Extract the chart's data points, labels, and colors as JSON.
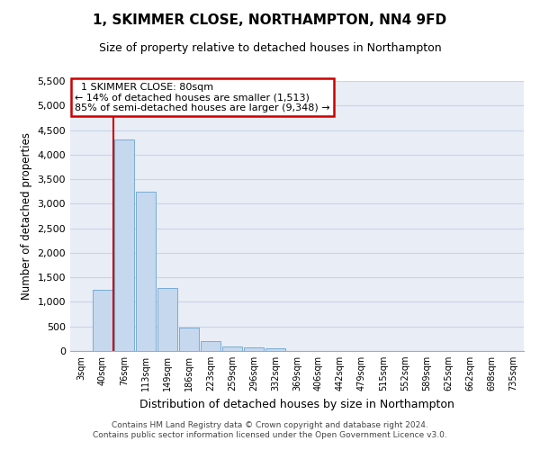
{
  "title": "1, SKIMMER CLOSE, NORTHAMPTON, NN4 9FD",
  "subtitle": "Size of property relative to detached houses in Northampton",
  "xlabel": "Distribution of detached houses by size in Northampton",
  "ylabel": "Number of detached properties",
  "footer_line1": "Contains HM Land Registry data © Crown copyright and database right 2024.",
  "footer_line2": "Contains public sector information licensed under the Open Government Licence v3.0.",
  "annotation_title": "1 SKIMMER CLOSE: 80sqm",
  "annotation_line1": "← 14% of detached houses are smaller (1,513)",
  "annotation_line2": "85% of semi-detached houses are larger (9,348) →",
  "bar_color": "#c5d8ee",
  "bar_edge_color": "#7aadd4",
  "vline_color": "#cc0000",
  "annotation_box_edgecolor": "#cc0000",
  "categories": [
    "3sqm",
    "40sqm",
    "76sqm",
    "113sqm",
    "149sqm",
    "186sqm",
    "223sqm",
    "259sqm",
    "296sqm",
    "332sqm",
    "369sqm",
    "406sqm",
    "442sqm",
    "479sqm",
    "515sqm",
    "552sqm",
    "589sqm",
    "625sqm",
    "662sqm",
    "698sqm",
    "735sqm"
  ],
  "values": [
    0,
    1250,
    4300,
    3250,
    1280,
    480,
    200,
    90,
    70,
    55,
    0,
    0,
    0,
    0,
    0,
    0,
    0,
    0,
    0,
    0,
    0
  ],
  "vline_x": 1.5,
  "ylim": [
    0,
    5500
  ],
  "yticks": [
    0,
    500,
    1000,
    1500,
    2000,
    2500,
    3000,
    3500,
    4000,
    4500,
    5000,
    5500
  ],
  "grid_color": "#c8d4e8",
  "bg_color": "#e8edf6",
  "figsize": [
    6.0,
    5.0
  ],
  "dpi": 100
}
